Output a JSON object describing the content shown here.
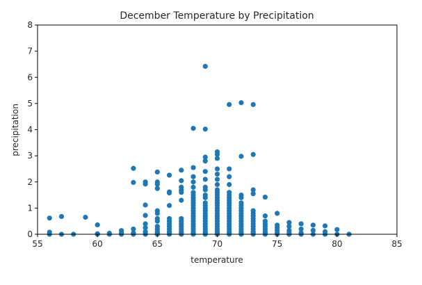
{
  "chart_data": {
    "type": "scatter",
    "title": "December Temperature by Precipitation",
    "xlabel": "temperature",
    "ylabel": "precipitation",
    "xlim": [
      55,
      85
    ],
    "ylim": [
      0,
      8
    ],
    "xticks": [
      55,
      60,
      65,
      70,
      75,
      80,
      85
    ],
    "yticks": [
      0,
      1,
      2,
      3,
      4,
      5,
      6,
      7,
      8
    ],
    "grid": false,
    "marker_color": "#1f77b4",
    "points": [
      [
        56,
        0.62
      ],
      [
        56,
        0.08
      ],
      [
        56,
        0.0
      ],
      [
        57,
        0.68
      ],
      [
        57,
        0.0
      ],
      [
        58,
        0.0
      ],
      [
        59,
        0.65
      ],
      [
        60,
        0.36
      ],
      [
        60,
        0.02
      ],
      [
        60,
        0.0
      ],
      [
        61,
        0.04
      ],
      [
        61,
        0.0
      ],
      [
        62,
        0.14
      ],
      [
        62,
        0.07
      ],
      [
        62,
        0.02
      ],
      [
        62,
        0.0
      ],
      [
        63,
        2.52
      ],
      [
        63,
        1.98
      ],
      [
        63,
        0.2
      ],
      [
        63,
        0.05
      ],
      [
        63,
        0.0
      ],
      [
        64,
        2.0
      ],
      [
        64,
        1.92
      ],
      [
        64,
        1.12
      ],
      [
        64,
        0.72
      ],
      [
        64,
        0.4
      ],
      [
        64,
        0.25
      ],
      [
        64,
        0.1
      ],
      [
        64,
        0.03
      ],
      [
        64,
        0.0
      ],
      [
        65,
        2.38
      ],
      [
        65,
        2.0
      ],
      [
        65,
        1.91
      ],
      [
        65,
        1.75
      ],
      [
        65,
        0.9
      ],
      [
        65,
        0.8
      ],
      [
        65,
        0.6
      ],
      [
        65,
        0.5
      ],
      [
        65,
        0.3
      ],
      [
        65,
        0.2
      ],
      [
        65,
        0.1
      ],
      [
        65,
        0.05
      ],
      [
        65,
        0.0
      ],
      [
        66,
        2.26
      ],
      [
        66,
        1.62
      ],
      [
        66,
        1.58
      ],
      [
        66,
        1.1
      ],
      [
        66,
        0.6
      ],
      [
        66,
        0.5
      ],
      [
        66,
        0.4
      ],
      [
        66,
        0.3
      ],
      [
        66,
        0.2
      ],
      [
        66,
        0.1
      ],
      [
        66,
        0.05
      ],
      [
        66,
        0.0
      ],
      [
        67,
        2.45
      ],
      [
        67,
        2.05
      ],
      [
        67,
        1.8
      ],
      [
        67,
        1.7
      ],
      [
        67,
        1.6
      ],
      [
        67,
        1.3
      ],
      [
        67,
        0.6
      ],
      [
        67,
        0.5
      ],
      [
        67,
        0.4
      ],
      [
        67,
        0.3
      ],
      [
        67,
        0.2
      ],
      [
        67,
        0.1
      ],
      [
        67,
        0.05
      ],
      [
        67,
        0.0
      ],
      [
        68,
        4.05
      ],
      [
        68,
        2.55
      ],
      [
        68,
        2.2
      ],
      [
        68,
        2.0
      ],
      [
        68,
        1.8
      ],
      [
        68,
        1.6
      ],
      [
        68,
        1.5
      ],
      [
        68,
        1.4
      ],
      [
        68,
        1.3
      ],
      [
        68,
        1.2
      ],
      [
        68,
        1.1
      ],
      [
        68,
        1.0
      ],
      [
        68,
        0.9
      ],
      [
        68,
        0.8
      ],
      [
        68,
        0.7
      ],
      [
        68,
        0.6
      ],
      [
        68,
        0.5
      ],
      [
        68,
        0.4
      ],
      [
        68,
        0.3
      ],
      [
        68,
        0.2
      ],
      [
        68,
        0.1
      ],
      [
        68,
        0.05
      ],
      [
        68,
        0.0
      ],
      [
        69,
        6.42
      ],
      [
        69,
        4.02
      ],
      [
        69,
        2.95
      ],
      [
        69,
        2.8
      ],
      [
        69,
        2.4
      ],
      [
        69,
        2.1
      ],
      [
        69,
        1.8
      ],
      [
        69,
        1.7
      ],
      [
        69,
        1.5
      ],
      [
        69,
        1.4
      ],
      [
        69,
        1.2
      ],
      [
        69,
        1.1
      ],
      [
        69,
        1.0
      ],
      [
        69,
        0.9
      ],
      [
        69,
        0.8
      ],
      [
        69,
        0.7
      ],
      [
        69,
        0.6
      ],
      [
        69,
        0.5
      ],
      [
        69,
        0.4
      ],
      [
        69,
        0.3
      ],
      [
        69,
        0.2
      ],
      [
        69,
        0.1
      ],
      [
        69,
        0.05
      ],
      [
        69,
        0.0
      ],
      [
        70,
        3.15
      ],
      [
        70,
        3.05
      ],
      [
        70,
        2.9
      ],
      [
        70,
        2.5
      ],
      [
        70,
        2.3
      ],
      [
        70,
        2.1
      ],
      [
        70,
        1.9
      ],
      [
        70,
        1.7
      ],
      [
        70,
        1.6
      ],
      [
        70,
        1.5
      ],
      [
        70,
        1.4
      ],
      [
        70,
        1.3
      ],
      [
        70,
        1.2
      ],
      [
        70,
        1.1
      ],
      [
        70,
        1.0
      ],
      [
        70,
        0.9
      ],
      [
        70,
        0.8
      ],
      [
        70,
        0.7
      ],
      [
        70,
        0.6
      ],
      [
        70,
        0.5
      ],
      [
        70,
        0.4
      ],
      [
        70,
        0.3
      ],
      [
        70,
        0.2
      ],
      [
        70,
        0.1
      ],
      [
        70,
        0.05
      ],
      [
        70,
        0.0
      ],
      [
        71,
        4.96
      ],
      [
        71,
        2.5
      ],
      [
        71,
        2.2
      ],
      [
        71,
        1.9
      ],
      [
        71,
        1.6
      ],
      [
        71,
        1.5
      ],
      [
        71,
        1.4
      ],
      [
        71,
        1.3
      ],
      [
        71,
        1.2
      ],
      [
        71,
        1.1
      ],
      [
        71,
        1.0
      ],
      [
        71,
        0.9
      ],
      [
        71,
        0.8
      ],
      [
        71,
        0.7
      ],
      [
        71,
        0.6
      ],
      [
        71,
        0.5
      ],
      [
        71,
        0.4
      ],
      [
        71,
        0.3
      ],
      [
        71,
        0.2
      ],
      [
        71,
        0.1
      ],
      [
        71,
        0.05
      ],
      [
        71,
        0.0
      ],
      [
        72,
        5.03
      ],
      [
        72,
        2.98
      ],
      [
        72,
        1.5
      ],
      [
        72,
        1.4
      ],
      [
        72,
        1.2
      ],
      [
        72,
        1.1
      ],
      [
        72,
        1.0
      ],
      [
        72,
        0.9
      ],
      [
        72,
        0.8
      ],
      [
        72,
        0.7
      ],
      [
        72,
        0.6
      ],
      [
        72,
        0.5
      ],
      [
        72,
        0.4
      ],
      [
        72,
        0.3
      ],
      [
        72,
        0.2
      ],
      [
        72,
        0.1
      ],
      [
        72,
        0.05
      ],
      [
        72,
        0.0
      ],
      [
        73,
        4.96
      ],
      [
        73,
        3.05
      ],
      [
        73,
        1.7
      ],
      [
        73,
        1.55
      ],
      [
        73,
        0.9
      ],
      [
        73,
        0.8
      ],
      [
        73,
        0.7
      ],
      [
        73,
        0.6
      ],
      [
        73,
        0.5
      ],
      [
        73,
        0.4
      ],
      [
        73,
        0.3
      ],
      [
        73,
        0.2
      ],
      [
        73,
        0.1
      ],
      [
        73,
        0.05
      ],
      [
        73,
        0.0
      ],
      [
        74,
        1.42
      ],
      [
        74,
        0.7
      ],
      [
        74,
        0.5
      ],
      [
        74,
        0.4
      ],
      [
        74,
        0.3
      ],
      [
        74,
        0.2
      ],
      [
        74,
        0.1
      ],
      [
        74,
        0.05
      ],
      [
        74,
        0.0
      ],
      [
        75,
        0.8
      ],
      [
        75,
        0.35
      ],
      [
        75,
        0.25
      ],
      [
        75,
        0.15
      ],
      [
        75,
        0.05
      ],
      [
        75,
        0.0
      ],
      [
        76,
        0.45
      ],
      [
        76,
        0.3
      ],
      [
        76,
        0.15
      ],
      [
        76,
        0.05
      ],
      [
        76,
        0.0
      ],
      [
        77,
        0.4
      ],
      [
        77,
        0.2
      ],
      [
        77,
        0.05
      ],
      [
        77,
        0.0
      ],
      [
        78,
        0.35
      ],
      [
        78,
        0.15
      ],
      [
        78,
        0.0
      ],
      [
        79,
        0.32
      ],
      [
        79,
        0.1
      ],
      [
        79,
        0.0
      ],
      [
        80,
        0.18
      ],
      [
        80,
        0.0
      ],
      [
        81,
        0.0
      ]
    ]
  }
}
